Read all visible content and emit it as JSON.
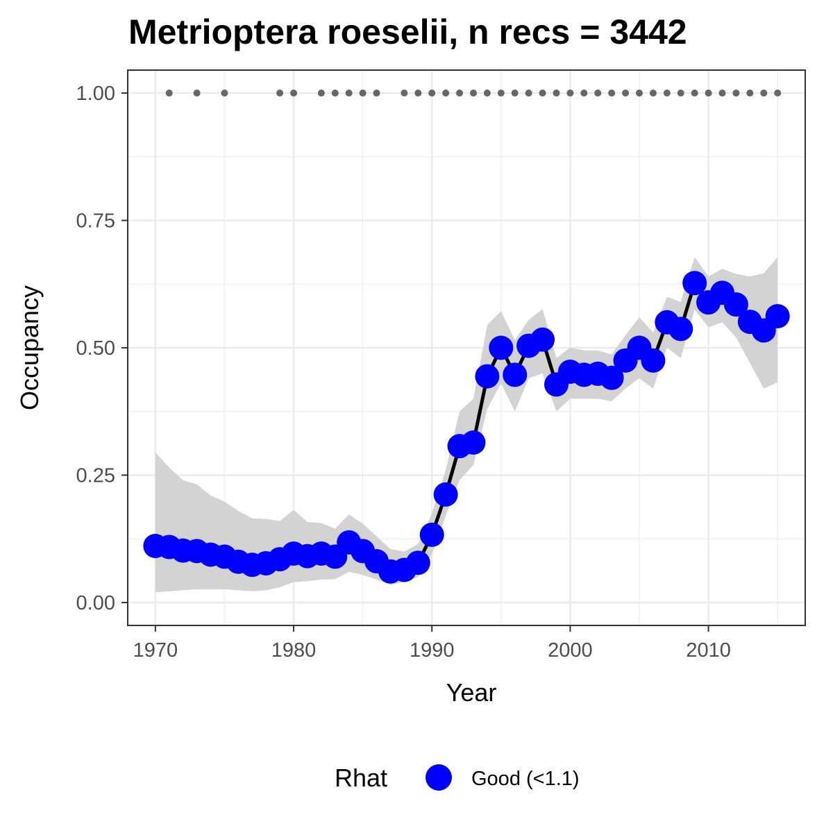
{
  "chart_data": {
    "type": "line",
    "title": "Metrioptera roeselii, n recs = 3442",
    "xlabel": "Year",
    "ylabel": "Occupancy",
    "xlim": [
      1968,
      2017
    ],
    "ylim": [
      -0.045,
      1.045
    ],
    "x_ticks": [
      1970,
      1980,
      1990,
      2000,
      2010
    ],
    "y_ticks": [
      0.0,
      0.25,
      0.5,
      0.75,
      1.0
    ],
    "x_tick_labels": [
      "1970",
      "1980",
      "1990",
      "2000",
      "2010"
    ],
    "y_tick_labels": [
      "0.00",
      "0.25",
      "0.50",
      "0.75",
      "1.00"
    ],
    "grid": true,
    "legend": {
      "title": "Rhat",
      "position": "bottom",
      "entries": [
        {
          "label": "Good (<1.1)",
          "color": "#0000FF"
        }
      ]
    },
    "colors": {
      "points": "#0000FF",
      "line": "#000000",
      "ribbon": "#d3d3d3",
      "record_dots": "#666666"
    },
    "series": [
      {
        "years": [
          1970,
          1971,
          1972,
          1973,
          1974,
          1975,
          1976,
          1977,
          1978,
          1979,
          1980,
          1981,
          1982,
          1983,
          1984,
          1985,
          1986,
          1987,
          1988,
          1989,
          1990,
          1991,
          1992,
          1993,
          1994,
          1995,
          1996,
          1997,
          1998,
          1999,
          2000,
          2001,
          2002,
          2003,
          2004,
          2005,
          2006,
          2007,
          2008,
          2009,
          2010,
          2011,
          2012,
          2013,
          2014,
          2015
        ],
        "mean": [
          0.111,
          0.109,
          0.102,
          0.101,
          0.094,
          0.09,
          0.08,
          0.074,
          0.077,
          0.085,
          0.096,
          0.091,
          0.096,
          0.09,
          0.118,
          0.101,
          0.081,
          0.061,
          0.064,
          0.078,
          0.133,
          0.212,
          0.307,
          0.314,
          0.444,
          0.5,
          0.447,
          0.504,
          0.516,
          0.428,
          0.453,
          0.447,
          0.449,
          0.441,
          0.475,
          0.5,
          0.475,
          0.55,
          0.537,
          0.627,
          0.589,
          0.608,
          0.585,
          0.551,
          0.534,
          0.562
        ],
        "lower": [
          0.02,
          0.022,
          0.024,
          0.026,
          0.026,
          0.026,
          0.024,
          0.022,
          0.024,
          0.03,
          0.04,
          0.042,
          0.045,
          0.046,
          0.06,
          0.054,
          0.045,
          0.035,
          0.04,
          0.05,
          0.095,
          0.17,
          0.24,
          0.27,
          0.38,
          0.43,
          0.375,
          0.44,
          0.45,
          0.375,
          0.4,
          0.4,
          0.4,
          0.395,
          0.42,
          0.44,
          0.42,
          0.5,
          0.48,
          0.575,
          0.54,
          0.55,
          0.52,
          0.47,
          0.42,
          0.432
        ],
        "upper": [
          0.295,
          0.265,
          0.24,
          0.232,
          0.21,
          0.198,
          0.18,
          0.165,
          0.164,
          0.16,
          0.182,
          0.158,
          0.156,
          0.145,
          0.173,
          0.155,
          0.13,
          0.105,
          0.1,
          0.115,
          0.175,
          0.26,
          0.375,
          0.4,
          0.545,
          0.572,
          0.515,
          0.555,
          0.576,
          0.48,
          0.5,
          0.495,
          0.495,
          0.487,
          0.525,
          0.56,
          0.53,
          0.6,
          0.59,
          0.678,
          0.64,
          0.655,
          0.645,
          0.64,
          0.646,
          0.678
        ]
      }
    ],
    "record_years": [
      1971,
      1973,
      1975,
      1979,
      1980,
      1982,
      1983,
      1984,
      1985,
      1986,
      1988,
      1989,
      1990,
      1991,
      1992,
      1993,
      1994,
      1995,
      1996,
      1997,
      1998,
      1999,
      2000,
      2001,
      2002,
      2003,
      2004,
      2005,
      2006,
      2007,
      2008,
      2009,
      2010,
      2011,
      2012,
      2013,
      2014,
      2015
    ],
    "record_value": 1.0
  }
}
